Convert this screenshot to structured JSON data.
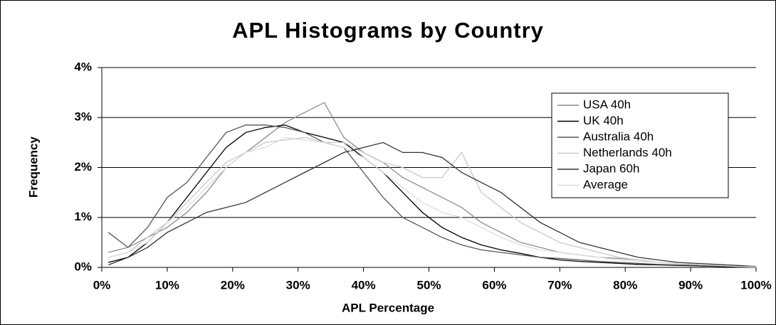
{
  "chart_data": {
    "type": "line",
    "title": "APL Histograms by Country",
    "x_label": "APL Percentage",
    "y_label": "Frequency",
    "x": [
      1,
      4,
      7,
      10,
      13,
      16,
      19,
      22,
      25,
      28,
      31,
      34,
      37,
      40,
      43,
      46,
      49,
      52,
      55,
      58,
      61,
      64,
      67,
      70,
      73,
      76,
      79,
      82,
      85,
      88,
      91,
      94,
      97,
      100
    ],
    "series": [
      {
        "name": "USA 40h",
        "color": "#8c8c8c",
        "values": [
          0.3,
          0.4,
          0.6,
          0.8,
          1.1,
          1.5,
          2.0,
          2.3,
          2.6,
          2.9,
          3.1,
          3.3,
          2.6,
          2.3,
          2.1,
          1.8,
          1.6,
          1.4,
          1.2,
          0.9,
          0.7,
          0.5,
          0.4,
          0.3,
          0.25,
          0.2,
          0.18,
          0.15,
          0.1,
          0.08,
          0.06,
          0.04,
          0.02,
          0.01
        ]
      },
      {
        "name": "UK 40h",
        "color": "#000000",
        "values": [
          0.1,
          0.2,
          0.5,
          0.9,
          1.4,
          1.9,
          2.4,
          2.7,
          2.8,
          2.85,
          2.7,
          2.6,
          2.5,
          2.2,
          1.9,
          1.5,
          1.1,
          0.8,
          0.6,
          0.45,
          0.35,
          0.28,
          0.2,
          0.15,
          0.12,
          0.1,
          0.08,
          0.06,
          0.05,
          0.04,
          0.03,
          0.02,
          0.01,
          0.01
        ]
      },
      {
        "name": "Australia 40h",
        "color": "#555555",
        "values": [
          0.7,
          0.4,
          0.8,
          1.4,
          1.7,
          2.2,
          2.7,
          2.85,
          2.85,
          2.8,
          2.7,
          2.5,
          2.4,
          1.9,
          1.4,
          1.0,
          0.8,
          0.6,
          0.45,
          0.35,
          0.3,
          0.25,
          0.2,
          0.18,
          0.15,
          0.12,
          0.1,
          0.08,
          0.06,
          0.05,
          0.04,
          0.03,
          0.02,
          0.01
        ]
      },
      {
        "name": "Netherlands 40h",
        "color": "#c8c8c8",
        "values": [
          0.2,
          0.3,
          0.6,
          0.9,
          1.3,
          1.7,
          2.1,
          2.3,
          2.5,
          2.55,
          2.6,
          2.5,
          2.5,
          2.3,
          2.1,
          2.0,
          1.8,
          1.8,
          2.3,
          1.5,
          1.2,
          0.9,
          0.7,
          0.5,
          0.4,
          0.3,
          0.2,
          0.15,
          0.1,
          0.08,
          0.06,
          0.04,
          0.02,
          0.01
        ]
      },
      {
        "name": "Japan 60h",
        "color": "#333333",
        "values": [
          0.05,
          0.2,
          0.4,
          0.7,
          0.9,
          1.1,
          1.2,
          1.3,
          1.5,
          1.7,
          1.9,
          2.1,
          2.3,
          2.4,
          2.5,
          2.3,
          2.3,
          2.2,
          1.9,
          1.7,
          1.5,
          1.2,
          0.9,
          0.7,
          0.5,
          0.4,
          0.3,
          0.2,
          0.15,
          0.1,
          0.08,
          0.06,
          0.04,
          0.02
        ]
      },
      {
        "name": "Average",
        "color": "#dcdcdc",
        "values": [
          0.2,
          0.3,
          0.5,
          0.9,
          1.2,
          1.6,
          2.0,
          2.3,
          2.4,
          2.6,
          2.55,
          2.5,
          2.4,
          2.2,
          1.9,
          1.6,
          1.3,
          1.1,
          1.0,
          0.8,
          0.6,
          0.45,
          0.35,
          0.3,
          0.25,
          0.2,
          0.15,
          0.12,
          0.1,
          0.08,
          0.06,
          0.04,
          0.02,
          0.01
        ]
      }
    ],
    "xlim": [
      0,
      100
    ],
    "xticks": [
      {
        "value": 0,
        "label": "0%"
      },
      {
        "value": 10,
        "label": "10%"
      },
      {
        "value": 20,
        "label": "20%"
      },
      {
        "value": 30,
        "label": "30%"
      },
      {
        "value": 40,
        "label": "40%"
      },
      {
        "value": 50,
        "label": "50%"
      },
      {
        "value": 60,
        "label": "60%"
      },
      {
        "value": 70,
        "label": "70%"
      },
      {
        "value": 80,
        "label": "80%"
      },
      {
        "value": 90,
        "label": "90%"
      },
      {
        "value": 100,
        "label": "100%"
      }
    ],
    "ylim": [
      0,
      4
    ],
    "yticks": [
      {
        "value": 0,
        "label": "0%"
      },
      {
        "value": 1,
        "label": "1%"
      },
      {
        "value": 2,
        "label": "2%"
      },
      {
        "value": 3,
        "label": "3%"
      },
      {
        "value": 4,
        "label": "4%"
      }
    ],
    "grid": true,
    "legend": "upper right"
  }
}
